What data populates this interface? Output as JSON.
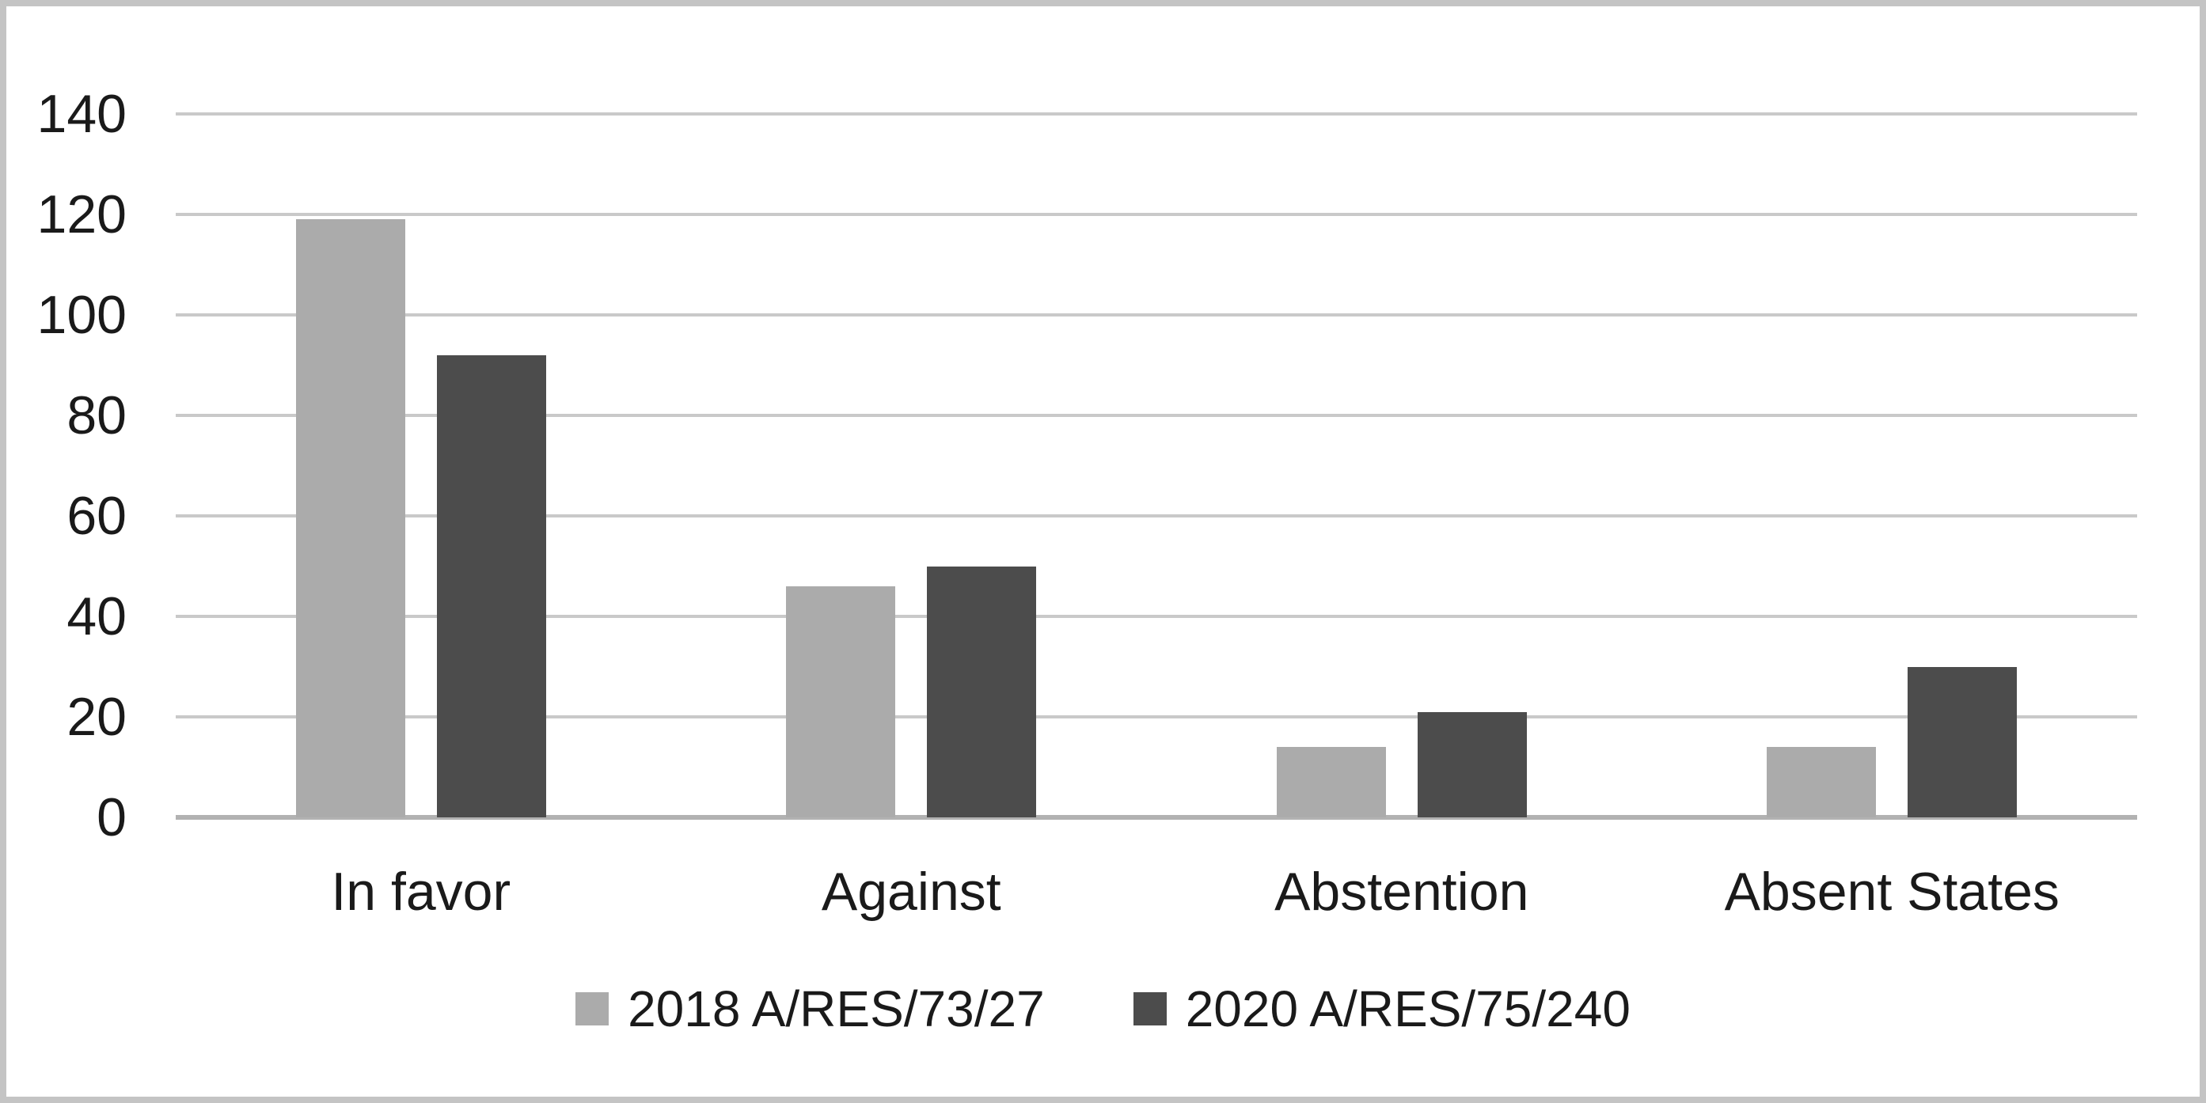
{
  "chart_data": {
    "type": "bar",
    "categories": [
      "In favor",
      "Against",
      "Abstention",
      "Absent States"
    ],
    "series": [
      {
        "name": "2018 A/RES/73/27",
        "color": "#ababab",
        "values": [
          119,
          46,
          14,
          14
        ]
      },
      {
        "name": "2020 A/RES/75/240",
        "color": "#4c4c4c",
        "values": [
          92,
          50,
          21,
          30
        ]
      }
    ],
    "title": "",
    "xlabel": "",
    "ylabel": "",
    "ylim": [
      0,
      140
    ],
    "ytick_step": 20,
    "yticks": [
      0,
      20,
      40,
      60,
      80,
      100,
      120,
      140
    ],
    "grid": true,
    "legend_position": "bottom",
    "colors": {
      "gridline": "#c9c9c9",
      "axis_line": "#b2b2b2",
      "text": "#1a1a1a",
      "frame_border": "#c4c4c4",
      "background": "#ffffff"
    }
  }
}
